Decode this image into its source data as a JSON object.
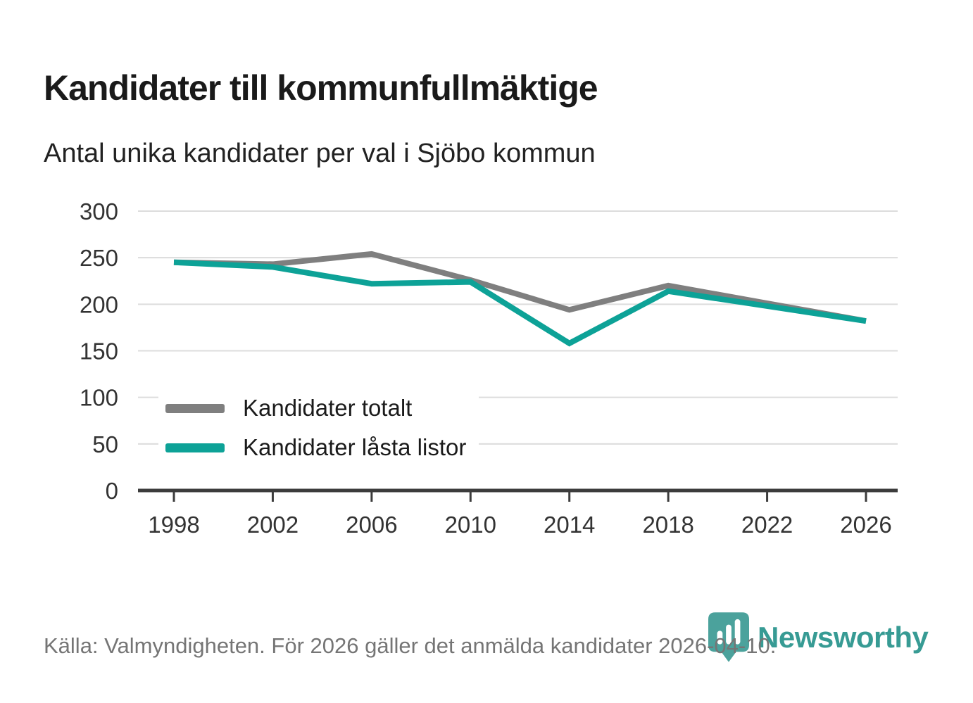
{
  "header": {
    "title": "Kandidater till kommunfullmäktige",
    "subtitle": "Antal unika kandidater per val i Sjöbo kommun"
  },
  "legend": {
    "items": [
      {
        "label": "Kandidater totalt",
        "color": "#7f7f7f"
      },
      {
        "label": "Kandidater låsta listor",
        "color": "#0da297"
      }
    ]
  },
  "footer": {
    "source_text": "Källa: Valmyndigheten. För 2026 gäller det anmälda kandidater 2026-04-10.",
    "logo": {
      "text": "Newsworthy",
      "icon": "bar-chart-pin-icon",
      "pin_color": "#4ba29c",
      "text_color": "#379b94"
    }
  },
  "chart_data": {
    "type": "line",
    "title": "Kandidater till kommunfullmäktige",
    "subtitle": "Antal unika kandidater per val i Sjöbo kommun",
    "xlabel": "",
    "ylabel": "",
    "categories": [
      "1998",
      "2002",
      "2006",
      "2010",
      "2014",
      "2018",
      "2022",
      "2026"
    ],
    "series": [
      {
        "name": "Kandidater totalt",
        "color": "#7f7f7f",
        "values": [
          245,
          243,
          254,
          226,
          194,
          220,
          201,
          182
        ]
      },
      {
        "name": "Kandidater låsta listor",
        "color": "#0da297",
        "values": [
          245,
          240,
          222,
          224,
          158,
          214,
          198,
          182
        ]
      }
    ],
    "ylim": [
      0,
      300
    ],
    "yticks": [
      0,
      50,
      100,
      150,
      200,
      250,
      300
    ],
    "grid": true,
    "legend_position": "inside-bottom-left"
  },
  "colors": {
    "grid": "#dcdcdc",
    "axis": "#3c3c3c",
    "tick_label": "#333333",
    "background": "#ffffff"
  }
}
